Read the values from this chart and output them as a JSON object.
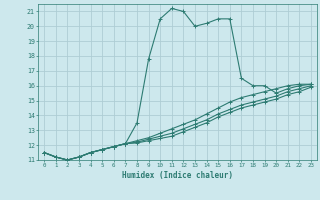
{
  "xlabel": "Humidex (Indice chaleur)",
  "background_color": "#cde8ed",
  "grid_color": "#aecdd4",
  "line_color": "#2d7b72",
  "xlim": [
    -0.5,
    23.5
  ],
  "ylim": [
    11,
    21.5
  ],
  "yticks": [
    11,
    12,
    13,
    14,
    15,
    16,
    17,
    18,
    19,
    20,
    21
  ],
  "xticks": [
    0,
    1,
    2,
    3,
    4,
    5,
    6,
    7,
    8,
    9,
    10,
    11,
    12,
    13,
    14,
    15,
    16,
    17,
    18,
    19,
    20,
    21,
    22,
    23
  ],
  "series": [
    {
      "x": [
        0,
        1,
        2,
        3,
        4,
        5,
        6,
        7,
        8,
        9,
        10,
        11,
        12,
        13,
        14,
        15,
        16,
        17,
        18,
        19,
        20,
        21,
        22,
        23
      ],
      "y": [
        11.5,
        11.2,
        11.0,
        11.2,
        11.5,
        11.7,
        11.9,
        12.1,
        13.5,
        17.8,
        20.5,
        21.2,
        21.0,
        20.0,
        20.2,
        20.5,
        20.5,
        16.5,
        16.0,
        16.0,
        15.5,
        15.8,
        16.0,
        16.1
      ]
    },
    {
      "x": [
        0,
        1,
        2,
        3,
        4,
        5,
        6,
        7,
        8,
        9,
        10,
        11,
        12,
        13,
        14,
        15,
        16,
        17,
        18,
        19,
        20,
        21,
        22,
        23
      ],
      "y": [
        11.5,
        11.2,
        11.0,
        11.2,
        11.5,
        11.7,
        11.9,
        12.1,
        12.3,
        12.5,
        12.8,
        13.1,
        13.4,
        13.7,
        14.1,
        14.5,
        14.9,
        15.2,
        15.4,
        15.6,
        15.8,
        16.0,
        16.1,
        16.1
      ]
    },
    {
      "x": [
        0,
        1,
        2,
        3,
        4,
        5,
        6,
        7,
        8,
        9,
        10,
        11,
        12,
        13,
        14,
        15,
        16,
        17,
        18,
        19,
        20,
        21,
        22,
        23
      ],
      "y": [
        11.5,
        11.2,
        11.0,
        11.2,
        11.5,
        11.7,
        11.9,
        12.1,
        12.2,
        12.4,
        12.6,
        12.8,
        13.1,
        13.4,
        13.7,
        14.1,
        14.4,
        14.7,
        14.9,
        15.1,
        15.3,
        15.6,
        15.8,
        16.0
      ]
    },
    {
      "x": [
        0,
        1,
        2,
        3,
        4,
        5,
        6,
        7,
        8,
        9,
        10,
        11,
        12,
        13,
        14,
        15,
        16,
        17,
        18,
        19,
        20,
        21,
        22,
        23
      ],
      "y": [
        11.5,
        11.2,
        11.0,
        11.2,
        11.5,
        11.7,
        11.9,
        12.1,
        12.15,
        12.3,
        12.45,
        12.6,
        12.9,
        13.2,
        13.5,
        13.9,
        14.2,
        14.5,
        14.7,
        14.9,
        15.1,
        15.4,
        15.6,
        15.9
      ]
    }
  ]
}
